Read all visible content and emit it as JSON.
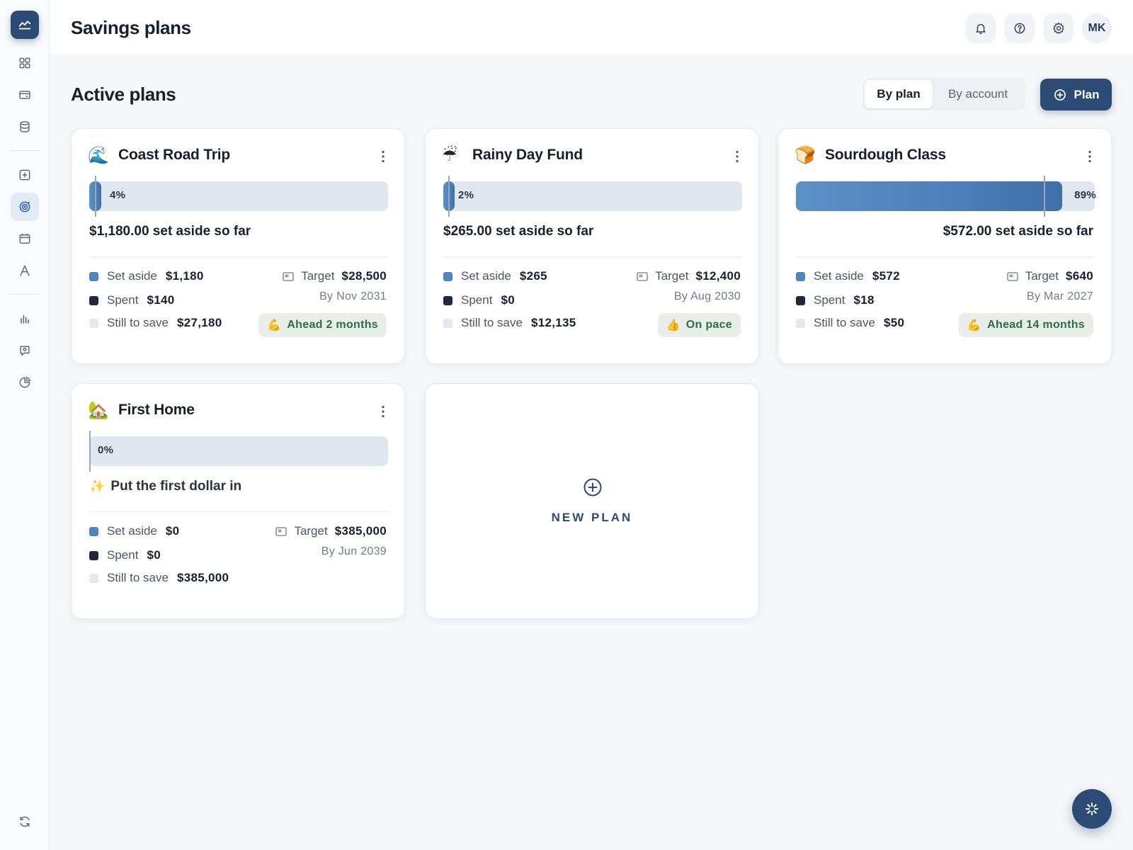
{
  "header": {
    "title": "Savings plans",
    "avatar_initials": "MK"
  },
  "sidebar": {
    "items": [
      {
        "icon": "grid-icon",
        "active": false
      },
      {
        "icon": "card-icon",
        "active": false
      },
      {
        "icon": "database-icon",
        "active": false
      },
      {
        "icon": "plus-square-icon",
        "active": false
      },
      {
        "icon": "target-icon",
        "active": true
      },
      {
        "icon": "calendar-icon",
        "active": false
      },
      {
        "icon": "letter-a-icon",
        "active": false
      },
      {
        "icon": "bar-chart-icon",
        "active": false
      },
      {
        "icon": "message-icon",
        "active": false
      },
      {
        "icon": "pie-chart-icon",
        "active": false
      },
      {
        "icon": "refresh-icon",
        "active": false
      }
    ]
  },
  "section": {
    "title": "Active plans",
    "views": [
      "By plan",
      "By account"
    ],
    "selected_view": "By plan",
    "add_label": "Plan"
  },
  "plans": [
    {
      "emoji": "🌊",
      "name": "Coast Road Trip",
      "progress_pct": 4,
      "progress_label": "4%",
      "saved_text": "$1,180.00 set aside so far",
      "set_aside_label": "Set aside",
      "set_aside": "$1,180",
      "spent_label": "Spent",
      "spent": "$140",
      "still_label": "Still to save",
      "still": "$27,180",
      "target_label": "Target",
      "target": "$28,500",
      "by_date": "By Nov 2031",
      "pace_emoji": "💪",
      "pace": "Ahead 2 months"
    },
    {
      "emoji": "☔",
      "name": "Rainy Day Fund",
      "progress_pct": 2,
      "progress_label": "2%",
      "saved_text": "$265.00 set aside so far",
      "set_aside_label": "Set aside",
      "set_aside": "$265",
      "spent_label": "Spent",
      "spent": "$0",
      "still_label": "Still to save",
      "still": "$12,135",
      "target_label": "Target",
      "target": "$12,400",
      "by_date": "By Aug 2030",
      "pace_emoji": "👍",
      "pace": "On pace"
    },
    {
      "emoji": "🍞",
      "name": "Sourdough Class",
      "progress_pct": 89,
      "progress_label": "89%",
      "saved_text": "$572.00 set aside so far",
      "set_aside_label": "Set aside",
      "set_aside": "$572",
      "spent_label": "Spent",
      "spent": "$18",
      "still_label": "Still to save",
      "still": "$50",
      "target_label": "Target",
      "target": "$640",
      "by_date": "By Mar 2027",
      "pace_emoji": "💪",
      "pace": "Ahead 14 months"
    },
    {
      "emoji": "🏡",
      "name": "First Home",
      "progress_pct": 0,
      "progress_label": "0%",
      "empty_emoji": "✨",
      "saved_text": "Put the first dollar in",
      "set_aside_label": "Set aside",
      "set_aside": "$0",
      "spent_label": "Spent",
      "spent": "$0",
      "still_label": "Still to save",
      "still": "$385,000",
      "target_label": "Target",
      "target": "$385,000",
      "by_date": "By Jun 2039"
    }
  ],
  "new_plan_label": "NEW PLAN",
  "colors": {
    "accent": "#2c4b75",
    "progress": "#4f86be",
    "track": "#dfe8f1",
    "spent": "#1e2a3c",
    "pace_bg": "#e8efe9",
    "pace_text": "#2f6b47"
  }
}
